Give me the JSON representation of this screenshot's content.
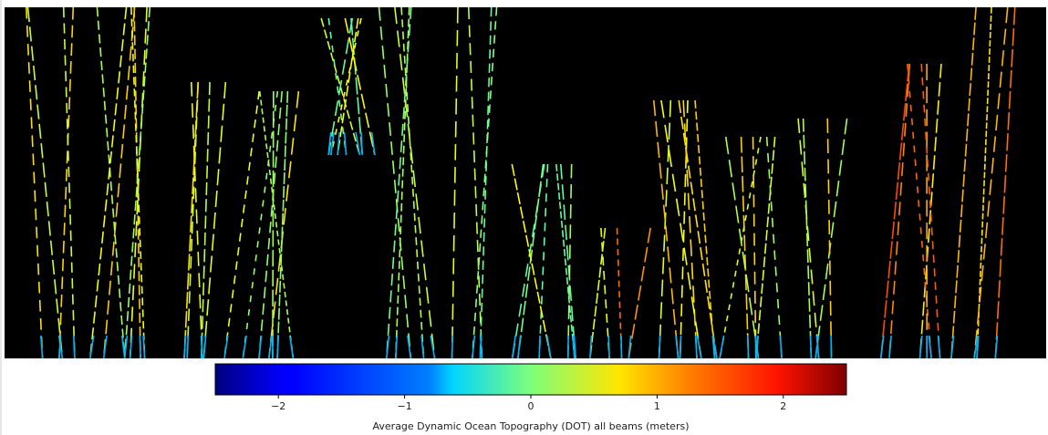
{
  "chart_data": {
    "type": "colorbar",
    "label": "Average Dynamic Ocean Topography (DOT) all beams (meters)",
    "colormap": "jet",
    "vlim": [
      -2.5,
      2.5
    ],
    "ticks": [
      {
        "value": -2,
        "label": "−2"
      },
      {
        "value": -1,
        "label": "−1"
      },
      0,
      1,
      2
    ]
  }
}
